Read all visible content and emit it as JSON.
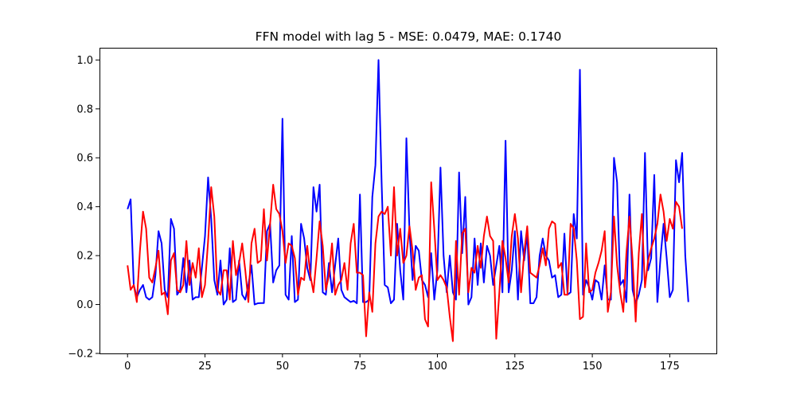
{
  "chart_data": {
    "type": "line",
    "title": "FFN model with lag 5 - MSE: 0.0479, MAE: 0.1740",
    "xlabel": "",
    "ylabel": "",
    "xlim": [
      -9.05,
      190.05
    ],
    "ylim": [
      -0.2,
      1.05
    ],
    "xticks": [
      0,
      25,
      50,
      75,
      100,
      125,
      150,
      175
    ],
    "yticks": [
      -0.2,
      0.0,
      0.2,
      0.4,
      0.6,
      0.8,
      1.0
    ],
    "ytick_labels": [
      "−0.2",
      "0.0",
      "0.2",
      "0.4",
      "0.6",
      "0.8",
      "1.0"
    ],
    "grid": false,
    "legend": "none",
    "series": [
      {
        "color": "#0000ff",
        "values": [
          0.39,
          0.43,
          0.08,
          0.03,
          0.06,
          0.08,
          0.03,
          0.02,
          0.03,
          0.12,
          0.3,
          0.25,
          0.06,
          0.03,
          0.35,
          0.31,
          0.04,
          0.06,
          0.19,
          0.05,
          0.18,
          0.02,
          0.03,
          0.03,
          0.15,
          0.28,
          0.52,
          0.35,
          0.1,
          0.04,
          0.18,
          0.0,
          0.02,
          0.23,
          0.01,
          0.02,
          0.18,
          0.04,
          0.02,
          0.08,
          0.16,
          0.0,
          0.005,
          0.006,
          0.006,
          0.3,
          0.33,
          0.09,
          0.14,
          0.16,
          0.76,
          0.04,
          0.02,
          0.28,
          0.01,
          0.02,
          0.33,
          0.27,
          0.15,
          0.1,
          0.48,
          0.38,
          0.49,
          0.05,
          0.04,
          0.17,
          0.05,
          0.16,
          0.27,
          0.06,
          0.03,
          0.02,
          0.01,
          0.015,
          0.005,
          0.45,
          0.01,
          0.01,
          0.02,
          0.44,
          0.57,
          1.0,
          0.5,
          0.08,
          0.07,
          0.005,
          0.02,
          0.33,
          0.14,
          0.02,
          0.68,
          0.3,
          0.1,
          0.24,
          0.22,
          0.1,
          0.08,
          0.03,
          0.21,
          0.02,
          0.14,
          0.56,
          0.2,
          0.05,
          0.2,
          0.05,
          0.02,
          0.54,
          0.21,
          0.44,
          0.0,
          0.03,
          0.27,
          0.08,
          0.25,
          0.09,
          0.24,
          0.2,
          0.08,
          0.16,
          0.24,
          0.05,
          0.67,
          0.05,
          0.14,
          0.3,
          0.02,
          0.3,
          0.18,
          0.29,
          0.005,
          0.005,
          0.03,
          0.2,
          0.27,
          0.2,
          0.18,
          0.11,
          0.12,
          0.03,
          0.04,
          0.29,
          0.04,
          0.05,
          0.37,
          0.27,
          0.96,
          0.04,
          0.1,
          0.07,
          0.02,
          0.1,
          0.09,
          0.02,
          0.16,
          0.02,
          0.02,
          0.6,
          0.5,
          0.08,
          0.1,
          0.01,
          0.45,
          0.06,
          0.005,
          0.04,
          0.1,
          0.62,
          0.14,
          0.19,
          0.53,
          0.01,
          0.19,
          0.33,
          0.19,
          0.03,
          0.06,
          0.59,
          0.5,
          0.62,
          0.2,
          0.01
        ]
      },
      {
        "color": "#ff0000",
        "values": [
          0.16,
          0.06,
          0.08,
          0.01,
          0.22,
          0.38,
          0.31,
          0.11,
          0.09,
          0.15,
          0.22,
          0.04,
          0.05,
          -0.04,
          0.18,
          0.21,
          0.06,
          0.05,
          0.08,
          0.26,
          0.08,
          0.17,
          0.11,
          0.23,
          0.03,
          0.08,
          0.26,
          0.48,
          0.36,
          0.06,
          0.04,
          0.14,
          0.14,
          0.02,
          0.26,
          0.12,
          0.17,
          0.25,
          0.14,
          0.01,
          0.25,
          0.31,
          0.17,
          0.18,
          0.39,
          0.18,
          0.33,
          0.49,
          0.39,
          0.37,
          0.3,
          0.17,
          0.25,
          0.24,
          0.19,
          0.04,
          0.11,
          0.1,
          0.24,
          0.12,
          0.05,
          0.19,
          0.34,
          0.24,
          0.06,
          0.12,
          0.25,
          0.04,
          0.08,
          0.1,
          0.17,
          0.06,
          0.25,
          0.33,
          0.13,
          0.13,
          0.12,
          -0.13,
          0.05,
          -0.03,
          0.25,
          0.36,
          0.38,
          0.37,
          0.4,
          0.2,
          0.48,
          0.2,
          0.31,
          0.17,
          0.2,
          0.32,
          0.22,
          0.06,
          0.11,
          0.12,
          -0.06,
          -0.09,
          0.5,
          0.31,
          0.1,
          0.12,
          0.1,
          0.07,
          -0.05,
          -0.15,
          0.26,
          0.04,
          0.29,
          0.31,
          0.05,
          0.15,
          0.13,
          0.24,
          0.15,
          0.28,
          0.36,
          0.28,
          0.26,
          -0.14,
          0.05,
          0.26,
          0.19,
          0.09,
          0.28,
          0.37,
          0.27,
          0.05,
          0.21,
          0.32,
          0.13,
          0.12,
          0.11,
          0.16,
          0.23,
          0.16,
          0.31,
          0.34,
          0.33,
          0.15,
          0.17,
          0.04,
          0.04,
          0.33,
          0.31,
          0.18,
          -0.06,
          -0.05,
          0.25,
          0.05,
          0.06,
          0.13,
          0.17,
          0.22,
          0.3,
          -0.03,
          0.05,
          0.36,
          0.16,
          0.05,
          -0.03,
          0.21,
          0.36,
          0.18,
          -0.07,
          0.21,
          0.37,
          0.07,
          0.18,
          0.23,
          0.27,
          0.33,
          0.45,
          0.38,
          0.26,
          0.35,
          0.31,
          0.42,
          0.4,
          0.31
        ]
      }
    ]
  }
}
